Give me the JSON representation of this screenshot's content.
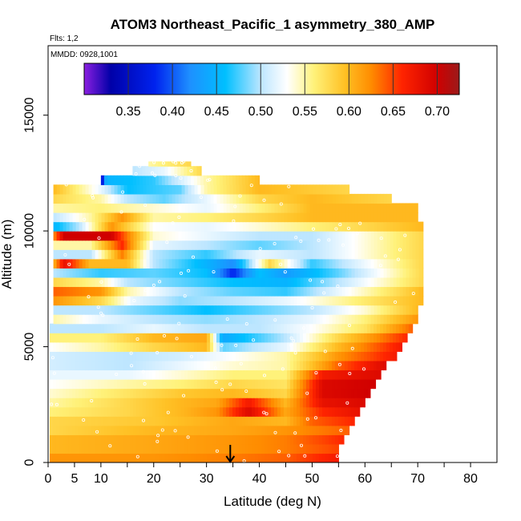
{
  "chart_data": {
    "type": "heatmap",
    "title": "ATOM3 Northeast_Pacific_1 asymmetry_380_AMP",
    "flights_label": "Flts: 1,2",
    "dates_label": "MMDD: 0928,1001",
    "xlabel": "Latitude (deg N)",
    "ylabel": "Altitude (m)",
    "xlim": [
      0,
      85
    ],
    "ylim": [
      0,
      18000
    ],
    "x_ticks": [
      0,
      5,
      10,
      20,
      30,
      40,
      50,
      60,
      70,
      80
    ],
    "x_tick_labels": [
      "0",
      "5",
      "10",
      "20",
      "30",
      "40",
      "50",
      "60",
      "70",
      "80"
    ],
    "x_minor_ticks": [
      15,
      25,
      35,
      45,
      55,
      65,
      75
    ],
    "y_ticks": [
      0,
      5000,
      10000,
      15000
    ],
    "y_tick_labels": [
      "0",
      "5000",
      "10000",
      "15000"
    ],
    "colorbar": {
      "range": [
        0.3,
        0.725
      ],
      "ticks": [
        0.35,
        0.4,
        0.45,
        0.5,
        0.55,
        0.6,
        0.65,
        0.7
      ],
      "tick_labels": [
        "0.35",
        "0.40",
        "0.45",
        "0.50",
        "0.55",
        "0.60",
        "0.65",
        "0.70"
      ],
      "stops": [
        {
          "v": 0.3,
          "color": "#8B1FE0"
        },
        {
          "v": 0.33,
          "color": "#0000A8"
        },
        {
          "v": 0.38,
          "color": "#0022EE"
        },
        {
          "v": 0.42,
          "color": "#1E90FF"
        },
        {
          "v": 0.46,
          "color": "#00BFFF"
        },
        {
          "v": 0.5,
          "color": "#BDE6FF"
        },
        {
          "v": 0.53,
          "color": "#FFFFFF"
        },
        {
          "v": 0.56,
          "color": "#FFF27A"
        },
        {
          "v": 0.595,
          "color": "#FFC125"
        },
        {
          "v": 0.625,
          "color": "#FF8C00"
        },
        {
          "v": 0.66,
          "color": "#FF2400"
        },
        {
          "v": 0.7,
          "color": "#D00000"
        },
        {
          "v": 0.725,
          "color": "#9B1A1A"
        }
      ]
    },
    "marker": {
      "latitude": 34.5,
      "altitude": 0
    },
    "layers": [
      {
        "z0": 0,
        "z1": 400,
        "x0": 0.3,
        "x1": 55,
        "pts": [
          [
            0.3,
            0.62
          ],
          [
            20,
            0.62
          ],
          [
            35,
            0.63
          ],
          [
            45,
            0.64
          ],
          [
            55,
            0.67
          ]
        ]
      },
      {
        "z0": 400,
        "z1": 800,
        "x0": 0.3,
        "x1": 55,
        "pts": [
          [
            0.3,
            0.6
          ],
          [
            20,
            0.61
          ],
          [
            35,
            0.62
          ],
          [
            45,
            0.63
          ],
          [
            55,
            0.65
          ]
        ]
      },
      {
        "z0": 800,
        "z1": 1200,
        "x0": 0.3,
        "x1": 56,
        "pts": [
          [
            0.3,
            0.6
          ],
          [
            20,
            0.61
          ],
          [
            35,
            0.62
          ],
          [
            45,
            0.63
          ],
          [
            56,
            0.66
          ]
        ]
      },
      {
        "z0": 1200,
        "z1": 1600,
        "x0": 0.3,
        "x1": 57,
        "pts": [
          [
            0.3,
            0.58
          ],
          [
            20,
            0.6
          ],
          [
            35,
            0.61
          ],
          [
            45,
            0.62
          ],
          [
            57,
            0.64
          ]
        ]
      },
      {
        "z0": 1600,
        "z1": 2000,
        "x0": 0.3,
        "x1": 58,
        "pts": [
          [
            0.3,
            0.58
          ],
          [
            20,
            0.59
          ],
          [
            35,
            0.61
          ],
          [
            45,
            0.6
          ],
          [
            50,
            0.64
          ],
          [
            58,
            0.66
          ]
        ]
      },
      {
        "z0": 2000,
        "z1": 2400,
        "x0": 0.3,
        "x1": 59,
        "pts": [
          [
            0.3,
            0.56
          ],
          [
            15,
            0.58
          ],
          [
            25,
            0.6
          ],
          [
            32,
            0.62
          ],
          [
            38,
            0.69
          ],
          [
            45,
            0.61
          ],
          [
            52,
            0.66
          ],
          [
            59,
            0.68
          ]
        ]
      },
      {
        "z0": 2400,
        "z1": 2800,
        "x0": 0.3,
        "x1": 60,
        "pts": [
          [
            0.3,
            0.55
          ],
          [
            15,
            0.58
          ],
          [
            25,
            0.6
          ],
          [
            32,
            0.61
          ],
          [
            38,
            0.67
          ],
          [
            45,
            0.6
          ],
          [
            52,
            0.68
          ],
          [
            60,
            0.69
          ]
        ]
      },
      {
        "z0": 2800,
        "z1": 3200,
        "x0": 0.3,
        "x1": 61,
        "pts": [
          [
            0.3,
            0.54
          ],
          [
            15,
            0.57
          ],
          [
            25,
            0.59
          ],
          [
            35,
            0.6
          ],
          [
            45,
            0.58
          ],
          [
            52,
            0.69
          ],
          [
            61,
            0.7
          ]
        ]
      },
      {
        "z0": 3200,
        "z1": 3600,
        "x0": 0.3,
        "x1": 62,
        "pts": [
          [
            0.3,
            0.53
          ],
          [
            15,
            0.55
          ],
          [
            25,
            0.56
          ],
          [
            35,
            0.58
          ],
          [
            45,
            0.57
          ],
          [
            52,
            0.69
          ],
          [
            62,
            0.7
          ]
        ]
      },
      {
        "z0": 3600,
        "z1": 4000,
        "x0": 0.3,
        "x1": 63,
        "pts": [
          [
            0.3,
            0.52
          ],
          [
            15,
            0.52
          ],
          [
            25,
            0.54
          ],
          [
            35,
            0.56
          ],
          [
            45,
            0.56
          ],
          [
            52,
            0.67
          ],
          [
            63,
            0.69
          ]
        ]
      },
      {
        "z0": 4000,
        "z1": 4400,
        "x0": 0.3,
        "x1": 64,
        "pts": [
          [
            0.3,
            0.51
          ],
          [
            15,
            0.5
          ],
          [
            25,
            0.52
          ],
          [
            35,
            0.54
          ],
          [
            45,
            0.55
          ],
          [
            55,
            0.64
          ],
          [
            64,
            0.69
          ]
        ]
      },
      {
        "z0": 4400,
        "z1": 4800,
        "x0": 0.3,
        "x1": 66,
        "pts": [
          [
            0.3,
            0.51
          ],
          [
            15,
            0.5
          ],
          [
            25,
            0.51
          ],
          [
            35,
            0.53
          ],
          [
            45,
            0.55
          ],
          [
            55,
            0.62
          ],
          [
            66,
            0.67
          ]
        ]
      },
      {
        "z0": 4800,
        "z1": 5200,
        "x0": 0.3,
        "x1": 67,
        "pts": [
          [
            0.3,
            0.53
          ],
          [
            10,
            0.55
          ],
          [
            20,
            0.58
          ],
          [
            30,
            0.6
          ],
          [
            33,
            0.48
          ],
          [
            45,
            0.52
          ],
          [
            55,
            0.6
          ],
          [
            67,
            0.67
          ]
        ]
      },
      {
        "z0": 5200,
        "z1": 5600,
        "x0": 0.3,
        "x1": 68,
        "pts": [
          [
            0.3,
            0.56
          ],
          [
            10,
            0.56
          ],
          [
            20,
            0.6
          ],
          [
            30,
            0.61
          ],
          [
            33,
            0.44
          ],
          [
            45,
            0.5
          ],
          [
            55,
            0.58
          ],
          [
            68,
            0.66
          ]
        ]
      },
      {
        "z0": 5600,
        "z1": 6000,
        "x0": 0.3,
        "x1": 69,
        "pts": [
          [
            0.3,
            0.5
          ],
          [
            10,
            0.5
          ],
          [
            20,
            0.52
          ],
          [
            30,
            0.5
          ],
          [
            40,
            0.5
          ],
          [
            50,
            0.53
          ],
          [
            60,
            0.57
          ],
          [
            69,
            0.64
          ]
        ]
      },
      {
        "z0": 6000,
        "z1": 6400,
        "x0": 1,
        "x1": 70,
        "pts": [
          [
            1,
            0.55
          ],
          [
            10,
            0.52
          ],
          [
            20,
            0.5
          ],
          [
            30,
            0.49
          ],
          [
            40,
            0.5
          ],
          [
            50,
            0.52
          ],
          [
            60,
            0.56
          ],
          [
            70,
            0.62
          ]
        ]
      },
      {
        "z0": 6400,
        "z1": 6800,
        "x0": 1,
        "x1": 70,
        "pts": [
          [
            1,
            0.5
          ],
          [
            10,
            0.5
          ],
          [
            20,
            0.48
          ],
          [
            30,
            0.46
          ],
          [
            40,
            0.48
          ],
          [
            50,
            0.5
          ],
          [
            60,
            0.54
          ],
          [
            70,
            0.6
          ]
        ]
      },
      {
        "z0": 6800,
        "z1": 7200,
        "x0": 1,
        "x1": 71,
        "pts": [
          [
            1,
            0.62
          ],
          [
            10,
            0.58
          ],
          [
            16,
            0.52
          ],
          [
            25,
            0.49
          ],
          [
            35,
            0.5
          ],
          [
            45,
            0.52
          ],
          [
            55,
            0.55
          ],
          [
            71,
            0.6
          ]
        ]
      },
      {
        "z0": 7200,
        "z1": 7600,
        "x0": 1,
        "x1": 71,
        "pts": [
          [
            1,
            0.64
          ],
          [
            10,
            0.62
          ],
          [
            15,
            0.55
          ],
          [
            25,
            0.5
          ],
          [
            35,
            0.48
          ],
          [
            45,
            0.47
          ],
          [
            55,
            0.52
          ],
          [
            71,
            0.6
          ]
        ]
      },
      {
        "z0": 7600,
        "z1": 8000,
        "x0": 1,
        "x1": 71,
        "pts": [
          [
            1,
            0.58
          ],
          [
            10,
            0.55
          ],
          [
            15,
            0.5
          ],
          [
            25,
            0.48
          ],
          [
            35,
            0.46
          ],
          [
            45,
            0.45
          ],
          [
            55,
            0.5
          ],
          [
            71,
            0.58
          ]
        ]
      },
      {
        "z0": 8000,
        "z1": 8400,
        "x0": 1,
        "x1": 71,
        "pts": [
          [
            1,
            0.5
          ],
          [
            10,
            0.47
          ],
          [
            20,
            0.48
          ],
          [
            30,
            0.46
          ],
          [
            35,
            0.38
          ],
          [
            40,
            0.46
          ],
          [
            45,
            0.43
          ],
          [
            55,
            0.48
          ],
          [
            71,
            0.58
          ]
        ]
      },
      {
        "z0": 8400,
        "z1": 8800,
        "x0": 1,
        "x1": 71,
        "pts": [
          [
            1,
            0.6
          ],
          [
            3,
            0.68
          ],
          [
            8,
            0.6
          ],
          [
            15,
            0.6
          ],
          [
            20,
            0.5
          ],
          [
            30,
            0.45
          ],
          [
            35,
            0.42
          ],
          [
            42,
            0.58
          ],
          [
            50,
            0.47
          ],
          [
            71,
            0.58
          ]
        ]
      },
      {
        "z0": 8800,
        "z1": 9200,
        "x0": 1,
        "x1": 71,
        "pts": [
          [
            1,
            0.5
          ],
          [
            8,
            0.5
          ],
          [
            14,
            0.63
          ],
          [
            20,
            0.5
          ],
          [
            30,
            0.47
          ],
          [
            40,
            0.52
          ],
          [
            50,
            0.5
          ],
          [
            71,
            0.58
          ]
        ]
      },
      {
        "z0": 9200,
        "z1": 9600,
        "x0": 1,
        "x1": 71,
        "pts": [
          [
            1,
            0.55
          ],
          [
            8,
            0.55
          ],
          [
            14,
            0.66
          ],
          [
            20,
            0.52
          ],
          [
            30,
            0.5
          ],
          [
            40,
            0.48
          ],
          [
            50,
            0.5
          ],
          [
            71,
            0.58
          ]
        ]
      },
      {
        "z0": 9600,
        "z1": 10000,
        "x0": 1,
        "x1": 71,
        "pts": [
          [
            1,
            0.62
          ],
          [
            3,
            0.7
          ],
          [
            12,
            0.7
          ],
          [
            14,
            0.65
          ],
          [
            20,
            0.54
          ],
          [
            30,
            0.52
          ],
          [
            40,
            0.5
          ],
          [
            50,
            0.5
          ],
          [
            71,
            0.58
          ]
        ]
      },
      {
        "z0": 10000,
        "z1": 10400,
        "x0": 1,
        "x1": 71,
        "pts": [
          [
            1,
            0.45
          ],
          [
            6,
            0.5
          ],
          [
            12,
            0.62
          ],
          [
            20,
            0.53
          ],
          [
            30,
            0.52
          ],
          [
            40,
            0.54
          ],
          [
            50,
            0.56
          ],
          [
            71,
            0.6
          ]
        ]
      },
      {
        "z0": 10400,
        "z1": 10800,
        "x0": 1,
        "x1": 70,
        "pts": [
          [
            1,
            0.5
          ],
          [
            8,
            0.55
          ],
          [
            14,
            0.62
          ],
          [
            20,
            0.55
          ],
          [
            30,
            0.56
          ],
          [
            40,
            0.58
          ],
          [
            50,
            0.6
          ],
          [
            70,
            0.6
          ]
        ]
      },
      {
        "z0": 10800,
        "z1": 11200,
        "x0": 1,
        "x1": 70,
        "pts": [
          [
            1,
            0.55
          ],
          [
            10,
            0.56
          ],
          [
            20,
            0.54
          ],
          [
            30,
            0.52
          ],
          [
            40,
            0.56
          ],
          [
            50,
            0.6
          ],
          [
            70,
            0.6
          ]
        ]
      },
      {
        "z0": 11200,
        "z1": 11600,
        "x0": 1,
        "x1": 65,
        "pts": [
          [
            1,
            0.58
          ],
          [
            10,
            0.55
          ],
          [
            15,
            0.5
          ],
          [
            22,
            0.48
          ],
          [
            30,
            0.52
          ],
          [
            40,
            0.58
          ],
          [
            50,
            0.6
          ],
          [
            65,
            0.58
          ]
        ]
      },
      {
        "z0": 11600,
        "z1": 12000,
        "x0": 1,
        "x1": 57,
        "pts": [
          [
            1,
            0.6
          ],
          [
            10,
            0.52
          ],
          [
            15,
            0.46
          ],
          [
            25,
            0.48
          ],
          [
            30,
            0.55
          ],
          [
            40,
            0.6
          ],
          [
            57,
            0.58
          ]
        ]
      },
      {
        "z0": 12000,
        "z1": 12400,
        "x0": 10,
        "x1": 40,
        "pts": [
          [
            10,
            0.34
          ],
          [
            11,
            0.45
          ],
          [
            20,
            0.47
          ],
          [
            30,
            0.55
          ],
          [
            40,
            0.6
          ]
        ]
      },
      {
        "z0": 12400,
        "z1": 12800,
        "x0": 16,
        "x1": 29,
        "pts": [
          [
            16,
            0.5
          ],
          [
            22,
            0.52
          ],
          [
            29,
            0.58
          ]
        ]
      },
      {
        "z0": 12800,
        "z1": 13000,
        "x0": 19,
        "x1": 27,
        "pts": [
          [
            19,
            0.55
          ],
          [
            27,
            0.58
          ]
        ]
      }
    ]
  }
}
